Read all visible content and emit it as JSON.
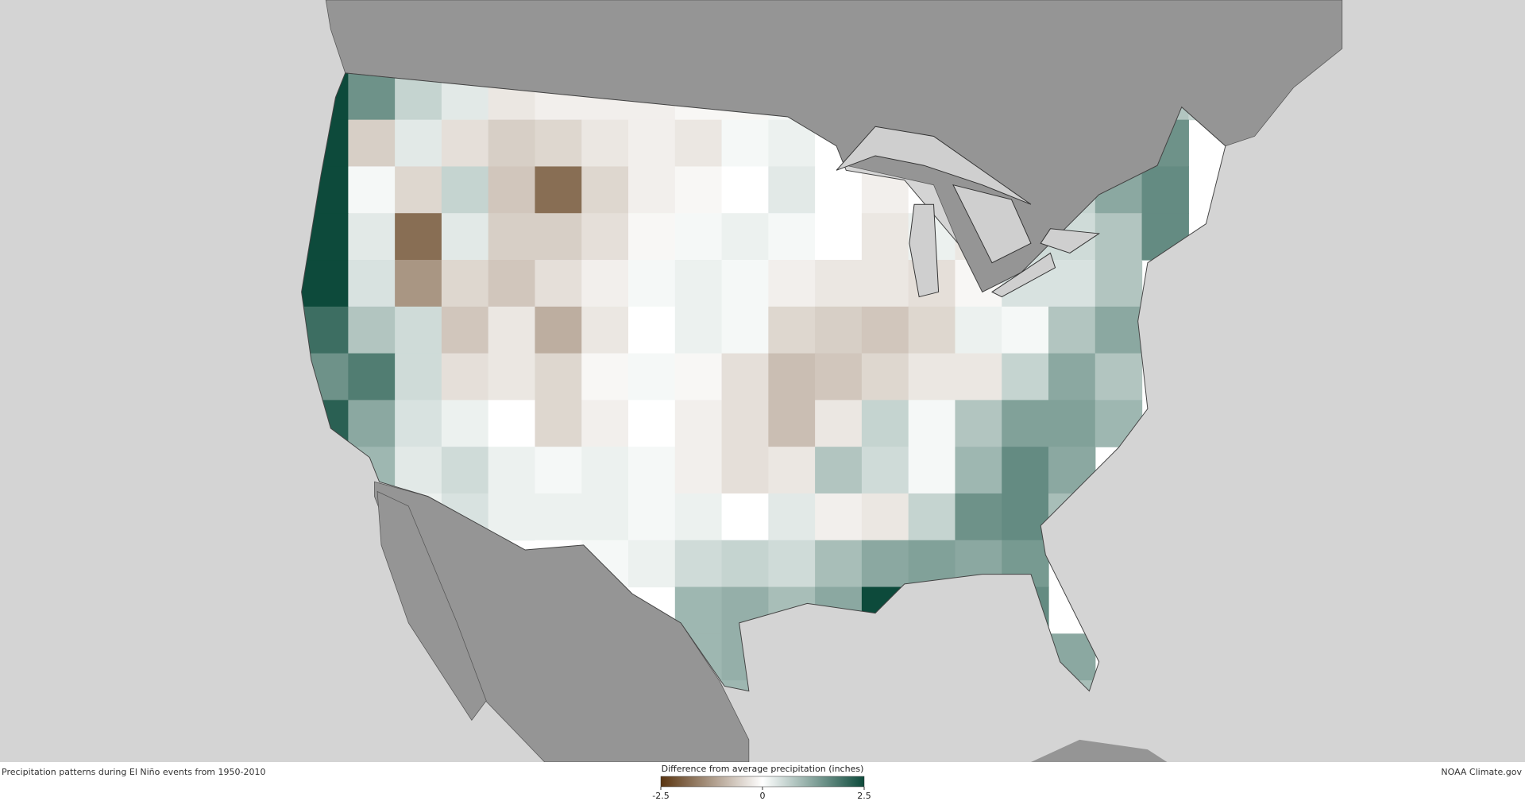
{
  "caption": "Precipitation patterns during El Niño events from 1950-2010",
  "credit": "NOAA Climate.gov",
  "legend": {
    "title": "Difference from average precipitation (inches)",
    "ticks": [
      -2.5,
      0,
      2.5
    ],
    "colors": [
      "#5a3511",
      "#ffffff",
      "#0d4a3b"
    ]
  },
  "map": {
    "values": [
      [
        2.5,
        1.5,
        0.6,
        0.3,
        -0.3,
        -0.2,
        -0.2,
        -0.2,
        -0.1,
        -0.1,
        0.1,
        null,
        null,
        null,
        null,
        null,
        null,
        null,
        0.8,
        0.6
      ],
      [
        2.5,
        -0.6,
        0.3,
        -0.4,
        -0.6,
        -0.5,
        -0.3,
        -0.2,
        -0.3,
        0.1,
        0.2,
        0.0,
        -0.2,
        null,
        null,
        null,
        null,
        1.0,
        1.5,
        null
      ],
      [
        2.5,
        0.1,
        -0.5,
        0.6,
        -0.7,
        -1.8,
        -0.5,
        -0.2,
        -0.1,
        0.0,
        0.3,
        0.0,
        -0.2,
        0.0,
        -0.3,
        null,
        0.6,
        1.2,
        1.6,
        null
      ],
      [
        2.5,
        0.3,
        -1.8,
        0.3,
        -0.6,
        -0.6,
        -0.4,
        -0.1,
        0.1,
        0.2,
        0.1,
        0.0,
        -0.3,
        0.2,
        -0.3,
        0.5,
        0.5,
        0.8,
        1.6,
        null
      ],
      [
        2.5,
        0.4,
        -1.3,
        -0.5,
        -0.7,
        -0.4,
        -0.2,
        0.1,
        0.2,
        0.1,
        -0.2,
        -0.3,
        -0.3,
        -0.4,
        -0.1,
        0.4,
        0.4,
        0.8,
        null,
        null
      ],
      [
        2.0,
        0.8,
        0.5,
        -0.7,
        -0.3,
        -1.0,
        -0.3,
        0.0,
        0.2,
        0.1,
        -0.5,
        -0.6,
        -0.7,
        -0.5,
        0.2,
        0.1,
        0.8,
        1.2,
        null,
        null
      ],
      [
        1.5,
        1.8,
        0.5,
        -0.4,
        -0.3,
        -0.5,
        -0.1,
        0.1,
        -0.1,
        -0.4,
        -0.8,
        -0.7,
        -0.5,
        -0.3,
        -0.3,
        0.6,
        1.2,
        0.8,
        null,
        null
      ],
      [
        2.2,
        1.2,
        0.4,
        0.2,
        0.0,
        -0.5,
        -0.2,
        0.0,
        -0.2,
        -0.4,
        -0.8,
        -0.3,
        0.6,
        0.1,
        0.8,
        1.3,
        1.3,
        1.0,
        null,
        null
      ],
      [
        null,
        1.0,
        0.3,
        0.5,
        0.2,
        0.1,
        0.2,
        0.1,
        -0.2,
        -0.4,
        -0.3,
        0.8,
        0.5,
        0.1,
        1.0,
        1.6,
        1.2,
        null,
        null,
        null
      ],
      [
        null,
        null,
        0.2,
        0.4,
        0.2,
        0.2,
        0.2,
        0.1,
        0.2,
        0.0,
        0.3,
        -0.2,
        -0.3,
        0.6,
        1.5,
        1.6,
        0.9,
        null,
        null,
        null
      ],
      [
        null,
        null,
        null,
        null,
        null,
        0.0,
        0.1,
        0.2,
        0.5,
        0.6,
        0.5,
        0.9,
        1.2,
        1.3,
        1.2,
        1.4,
        null,
        null,
        null,
        null
      ],
      [
        null,
        null,
        null,
        null,
        null,
        null,
        null,
        null,
        1.0,
        1.1,
        0.9,
        1.2,
        2.5,
        0.3,
        null,
        1.6,
        null,
        null,
        null,
        null
      ],
      [
        null,
        null,
        null,
        null,
        null,
        null,
        null,
        null,
        1.0,
        1.1,
        null,
        null,
        null,
        null,
        null,
        2.0,
        1.2,
        null,
        null,
        null
      ],
      [
        null,
        null,
        null,
        null,
        null,
        null,
        null,
        null,
        null,
        1.0,
        null,
        null,
        null,
        null,
        null,
        null,
        0.9,
        null,
        null,
        null
      ]
    ]
  }
}
